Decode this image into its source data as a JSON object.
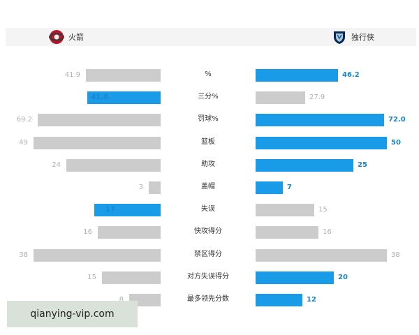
{
  "teams": {
    "left": {
      "name": "火箭",
      "icon": "rockets-logo-icon"
    },
    "right": {
      "name": "独行侠",
      "icon": "mavericks-logo-icon"
    }
  },
  "colors": {
    "highlight": "#1a9be8",
    "neutral": "#cccccc"
  },
  "scale_max": 72.0,
  "stats": [
    {
      "label": "%",
      "left": "41.9",
      "right": "46.2"
    },
    {
      "label": "三分%",
      "left": "41.0",
      "right": "27.9"
    },
    {
      "label": "罚球%",
      "left": "69.2",
      "right": "72.0"
    },
    {
      "label": "篮板",
      "left": "49",
      "right": "50"
    },
    {
      "label": "助攻",
      "left": "24",
      "right": "25"
    },
    {
      "label": "盖帽",
      "left": "3",
      "right": "7"
    },
    {
      "label": "失误",
      "left": "17",
      "right": "15"
    },
    {
      "label": "快攻得分",
      "left": "16",
      "right": "16"
    },
    {
      "label": "禁区得分",
      "left": "38",
      "right": "38"
    },
    {
      "label": "对方失误得分",
      "left": "15",
      "right": "20"
    },
    {
      "label": "最多领先分数",
      "left": "8",
      "right": "12"
    }
  ],
  "highlight": [
    "right",
    "left",
    "right",
    "right",
    "right",
    "right",
    "left",
    "none",
    "none",
    "right",
    "right"
  ],
  "bar_scale": [
    1,
    1,
    1,
    2.2,
    2.2,
    2.2,
    2.2,
    2.2,
    2.2,
    2.2,
    2.2
  ],
  "watermark": "qianying-vip.com"
}
